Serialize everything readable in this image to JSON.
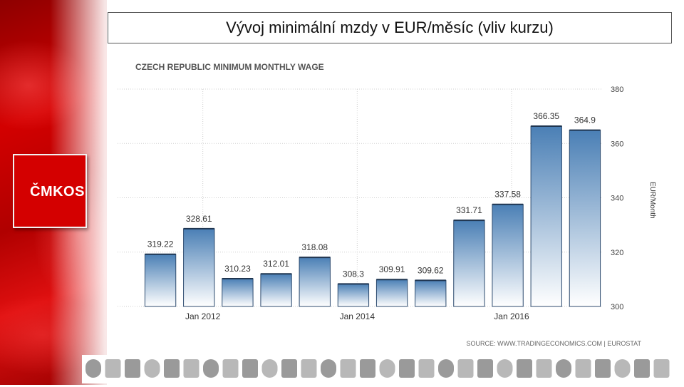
{
  "slide": {
    "title": "Vývoj minimální mzdy v EUR/měsíc (vliv kurzu)",
    "logo_text": "ČMKOS",
    "logos_strip_icon": "union-logos-strip"
  },
  "chart_data": {
    "type": "bar",
    "title": "CZECH REPUBLIC MINIMUM MONTHLY WAGE",
    "ylabel": "EUR/Month",
    "ylim": [
      300,
      380
    ],
    "yticks": [
      300,
      320,
      340,
      360,
      380
    ],
    "x_tick_labels": [
      "Jan 2012",
      "Jan 2014",
      "Jan 2016"
    ],
    "values": [
      319.22,
      328.61,
      310.23,
      312.01,
      318.08,
      308.3,
      309.91,
      309.62,
      331.71,
      337.58,
      366.35,
      364.9
    ],
    "data_labels": [
      "319.22",
      "328.61",
      "310.23",
      "312.01",
      "318.08",
      "308.3",
      "309.91",
      "309.62",
      "331.71",
      "337.58",
      "366.35",
      "364.9"
    ],
    "source": "SOURCE: WWW.TRADINGECONOMICS.COM | EUROSTAT",
    "grid": true,
    "bar_color_top": "#4a7fb5",
    "bar_color_bottom": "#ffffff"
  }
}
